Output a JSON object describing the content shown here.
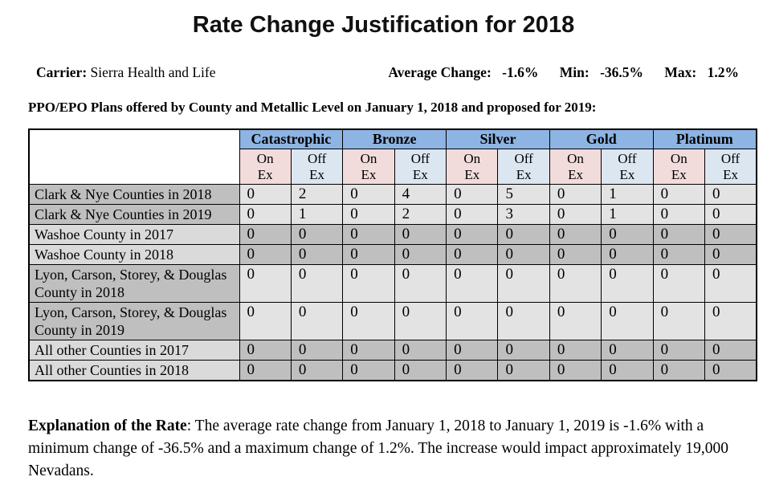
{
  "title": "Rate Change Justification for 2018",
  "carrier": {
    "label": "Carrier:",
    "name": "Sierra Health and Life"
  },
  "stats": {
    "average_label": "Average Change:",
    "average_value": "-1.6%",
    "min_label": "Min:",
    "min_value": "-36.5%",
    "max_label": "Max:",
    "max_value": "1.2%"
  },
  "subtitle": "PPO/EPO Plans offered by County and Metallic Level on January 1, 2018 and proposed for 2019:",
  "table": {
    "metal_levels": [
      "Catastrophic",
      "Bronze",
      "Silver",
      "Gold",
      "Platinum"
    ],
    "exchange": {
      "on": "On\nEx",
      "off": "Off\nEx"
    },
    "rows": [
      {
        "label": "Clark & Nye Counties in 2018",
        "values": [
          0,
          2,
          0,
          4,
          0,
          5,
          0,
          1,
          0,
          0
        ],
        "variant": "a"
      },
      {
        "label": "Clark & Nye Counties in 2019",
        "values": [
          0,
          1,
          0,
          2,
          0,
          3,
          0,
          1,
          0,
          0
        ],
        "variant": "a"
      },
      {
        "label": "Washoe County in 2017",
        "values": [
          0,
          0,
          0,
          0,
          0,
          0,
          0,
          0,
          0,
          0
        ],
        "variant": "b"
      },
      {
        "label": "Washoe County in 2018",
        "values": [
          0,
          0,
          0,
          0,
          0,
          0,
          0,
          0,
          0,
          0
        ],
        "variant": "b"
      },
      {
        "label": "Lyon, Carson, Storey, & Douglas County in 2018",
        "values": [
          0,
          0,
          0,
          0,
          0,
          0,
          0,
          0,
          0,
          0
        ],
        "variant": "a"
      },
      {
        "label": "Lyon, Carson, Storey, & Douglas County in 2019",
        "values": [
          0,
          0,
          0,
          0,
          0,
          0,
          0,
          0,
          0,
          0
        ],
        "variant": "a"
      },
      {
        "label": "All other Counties in 2017",
        "values": [
          0,
          0,
          0,
          0,
          0,
          0,
          0,
          0,
          0,
          0
        ],
        "variant": "b"
      },
      {
        "label": "All other Counties in 2018",
        "values": [
          0,
          0,
          0,
          0,
          0,
          0,
          0,
          0,
          0,
          0
        ],
        "variant": "b"
      }
    ]
  },
  "explanation": {
    "heading": "Explanation of the Rate",
    "body": ":  The average rate change from January 1, 2018 to January 1, 2019 is -1.6% with a minimum change of -36.5% and a maximum change of 1.2%.  The increase would impact approximately 19,000 Nevadans."
  },
  "colors": {
    "metal_header_blue": "#8DB4E2",
    "on_ex_pink": "#F2DCDB",
    "off_ex_blue": "#DCE6F1",
    "gray_dark": "#BFBFBF",
    "gray_light": "#DADADA",
    "data_light": "#E3E3E3"
  }
}
